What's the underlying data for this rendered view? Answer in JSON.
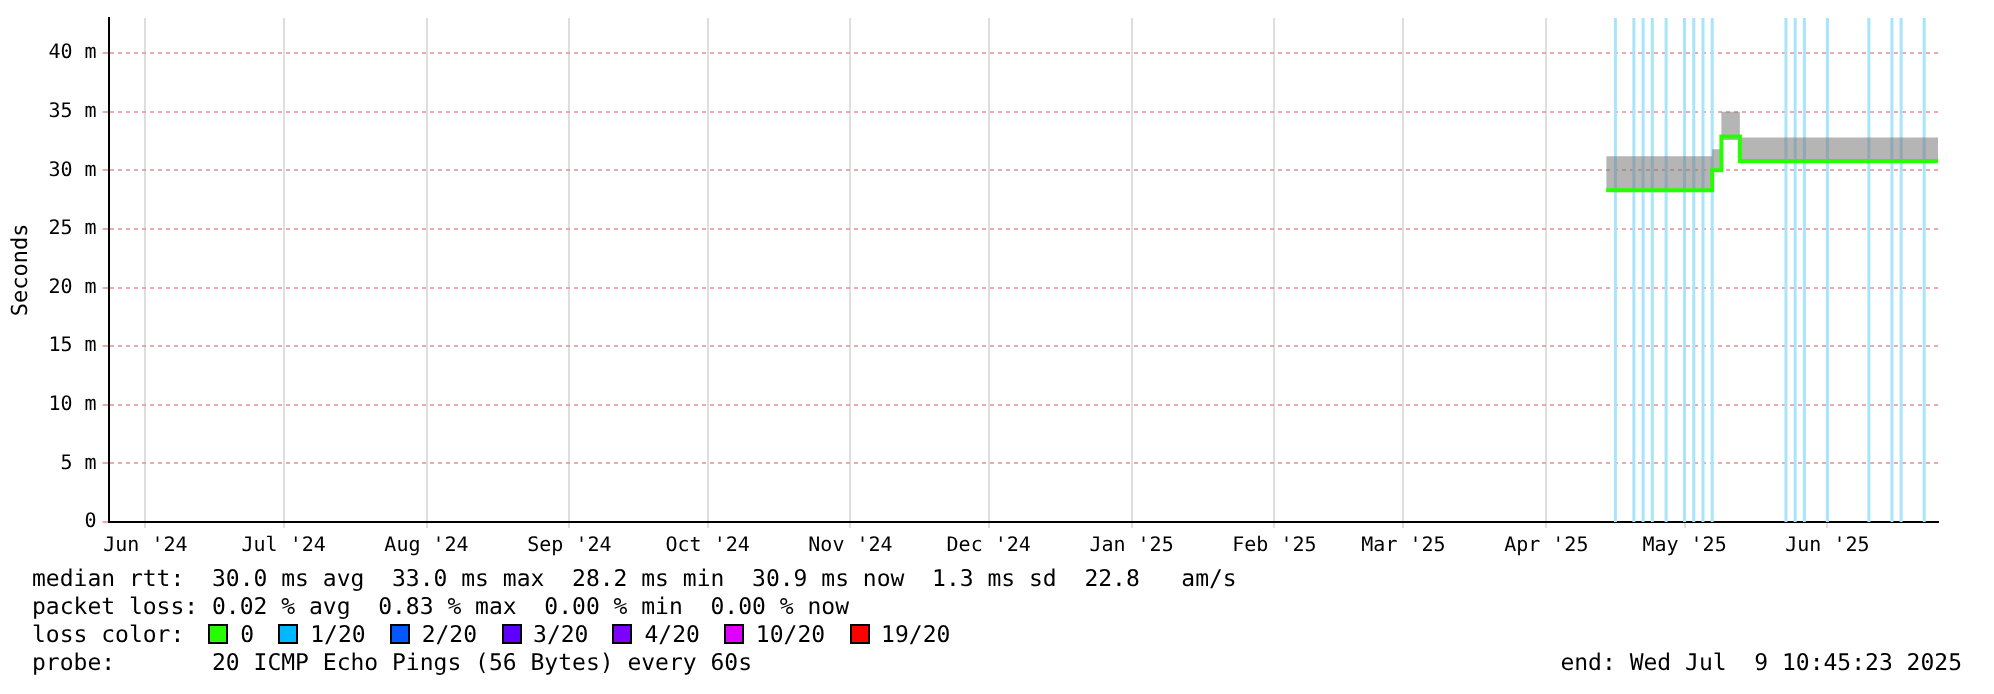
{
  "chart_data": {
    "type": "step",
    "ylabel": "Seconds",
    "xlim": [
      "2024-06-07",
      "2025-07-09"
    ],
    "xticks": [
      {
        "value": "2024-06-15",
        "label": "Jun '24"
      },
      {
        "value": "2024-07-15",
        "label": "Jul '24"
      },
      {
        "value": "2024-08-15",
        "label": "Aug '24"
      },
      {
        "value": "2024-09-15",
        "label": "Sep '24"
      },
      {
        "value": "2024-10-15",
        "label": "Oct '24"
      },
      {
        "value": "2024-11-15",
        "label": "Nov '24"
      },
      {
        "value": "2024-12-15",
        "label": "Dec '24"
      },
      {
        "value": "2025-01-15",
        "label": "Jan '25"
      },
      {
        "value": "2025-02-15",
        "label": "Feb '25"
      },
      {
        "value": "2025-03-15",
        "label": "Mar '25"
      },
      {
        "value": "2025-04-15",
        "label": "Apr '25"
      },
      {
        "value": "2025-05-15",
        "label": "May '25"
      },
      {
        "value": "2025-06-15",
        "label": "Jun '25"
      }
    ],
    "ylim": [
      0,
      43
    ],
    "yticks": [
      0,
      {
        "value": 5,
        "label": "5 m"
      },
      {
        "value": 10,
        "label": "10 m"
      },
      {
        "value": 15,
        "label": "15 m"
      },
      {
        "value": 20,
        "label": "20 m"
      },
      {
        "value": 25,
        "label": "25 m"
      },
      {
        "value": 30,
        "label": "30 m"
      },
      {
        "value": 35,
        "label": "35 m"
      },
      {
        "value": 40,
        "label": "40 m"
      }
    ],
    "grid": true,
    "legend": "bottom",
    "legend_title": "loss color:",
    "series": [
      {
        "name": "0",
        "color": "#26ff00",
        "x": [
          "2025-04-28",
          "2025-05-21",
          "2025-05-23",
          "2025-05-27",
          "2025-07-09"
        ],
        "values": [
          28.3,
          30.0,
          32.9,
          30.8,
          30.9
        ],
        "lower": [
          28.2,
          29.9,
          32.6,
          30.6,
          30.7
        ],
        "upper": [
          31.2,
          31.8,
          35.0,
          32.8,
          32.8
        ]
      },
      {
        "name": "1/20",
        "color": "#00b8ff",
        "values": [
          null,
          null,
          null,
          null,
          null
        ]
      },
      {
        "name": "2/20",
        "color": "#0059ff",
        "values": [
          null,
          null,
          null,
          null,
          null
        ]
      },
      {
        "name": "3/20",
        "color": "#5e00ff",
        "values": [
          null,
          null,
          null,
          null,
          null
        ]
      },
      {
        "name": "4/20",
        "color": "#7e00ff",
        "values": [
          null,
          null,
          null,
          null,
          null
        ]
      },
      {
        "name": "10/20",
        "color": "#dd00ff",
        "values": [
          null,
          null,
          null,
          null,
          null
        ]
      },
      {
        "name": "19/20",
        "color": "#ff0000",
        "values": [
          null,
          null,
          null,
          null,
          null
        ]
      }
    ],
    "ref_lines": [
      {
        "axis": "x",
        "value": "2025-04-30",
        "color": "#a8e4fa"
      },
      {
        "axis": "x",
        "value": "2025-05-04",
        "color": "#a8e4fa"
      },
      {
        "axis": "x",
        "value": "2025-05-06",
        "color": "#a8e4fa"
      },
      {
        "axis": "x",
        "value": "2025-05-08",
        "color": "#a8e4fa"
      },
      {
        "axis": "x",
        "value": "2025-05-11",
        "color": "#a8e4fa"
      },
      {
        "axis": "x",
        "value": "2025-05-15",
        "color": "#a8e4fa"
      },
      {
        "axis": "x",
        "value": "2025-05-17",
        "color": "#a8e4fa"
      },
      {
        "axis": "x",
        "value": "2025-05-19",
        "color": "#a8e4fa"
      },
      {
        "axis": "x",
        "value": "2025-05-21",
        "color": "#a8e4fa"
      },
      {
        "axis": "x",
        "value": "2025-06-06",
        "color": "#a8e4fa"
      },
      {
        "axis": "x",
        "value": "2025-06-08",
        "color": "#a8e4fa"
      },
      {
        "axis": "x",
        "value": "2025-06-10",
        "color": "#a8e4fa"
      },
      {
        "axis": "x",
        "value": "2025-06-15",
        "color": "#a8e4fa"
      },
      {
        "axis": "x",
        "value": "2025-06-24",
        "color": "#a8e4fa"
      },
      {
        "axis": "x",
        "value": "2025-06-29",
        "color": "#a8e4fa"
      },
      {
        "axis": "x",
        "value": "2025-07-01",
        "color": "#a8e4fa"
      },
      {
        "axis": "x",
        "value": "2025-07-06",
        "color": "#a8e4fa"
      }
    ],
    "annotations": [
      "median rtt:  30.0 ms avg  33.0 ms max  28.2 ms min  30.9 ms now  1.3 ms sd  22.8   am/s",
      "packet loss: 0.02 % avg  0.83 % max  0.00 % min  0.00 % now",
      "probe:       20 ICMP Echo Pings (56 Bytes) every 60s",
      "end: Wed Jul  9 10:45:23 2025"
    ]
  }
}
